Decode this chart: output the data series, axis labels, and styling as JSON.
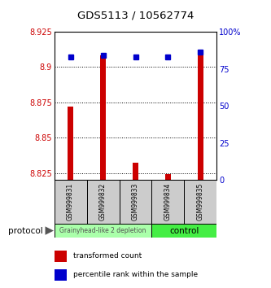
{
  "title": "GDS5113 / 10562774",
  "samples": [
    "GSM999831",
    "GSM999832",
    "GSM999833",
    "GSM999834",
    "GSM999835"
  ],
  "bar_values": [
    8.872,
    8.908,
    8.832,
    8.824,
    8.908
  ],
  "bar_base": 8.82,
  "percentile_values": [
    83,
    84,
    83,
    83,
    86
  ],
  "ylim_left": [
    8.82,
    8.925
  ],
  "ylim_right": [
    0,
    100
  ],
  "yticks_left": [
    8.825,
    8.85,
    8.875,
    8.9,
    8.925
  ],
  "yticks_right": [
    0,
    25,
    50,
    75,
    100
  ],
  "bar_color": "#cc0000",
  "percentile_color": "#0000cc",
  "group1_label": "Grainyhead-like 2 depletion",
  "group2_label": "control",
  "group1_indices": [
    0,
    1,
    2
  ],
  "group2_indices": [
    3,
    4
  ],
  "group1_color": "#aaffaa",
  "group2_color": "#44ee44",
  "protocol_label": "protocol",
  "legend_bar_label": "transformed count",
  "legend_pct_label": "percentile rank within the sample"
}
